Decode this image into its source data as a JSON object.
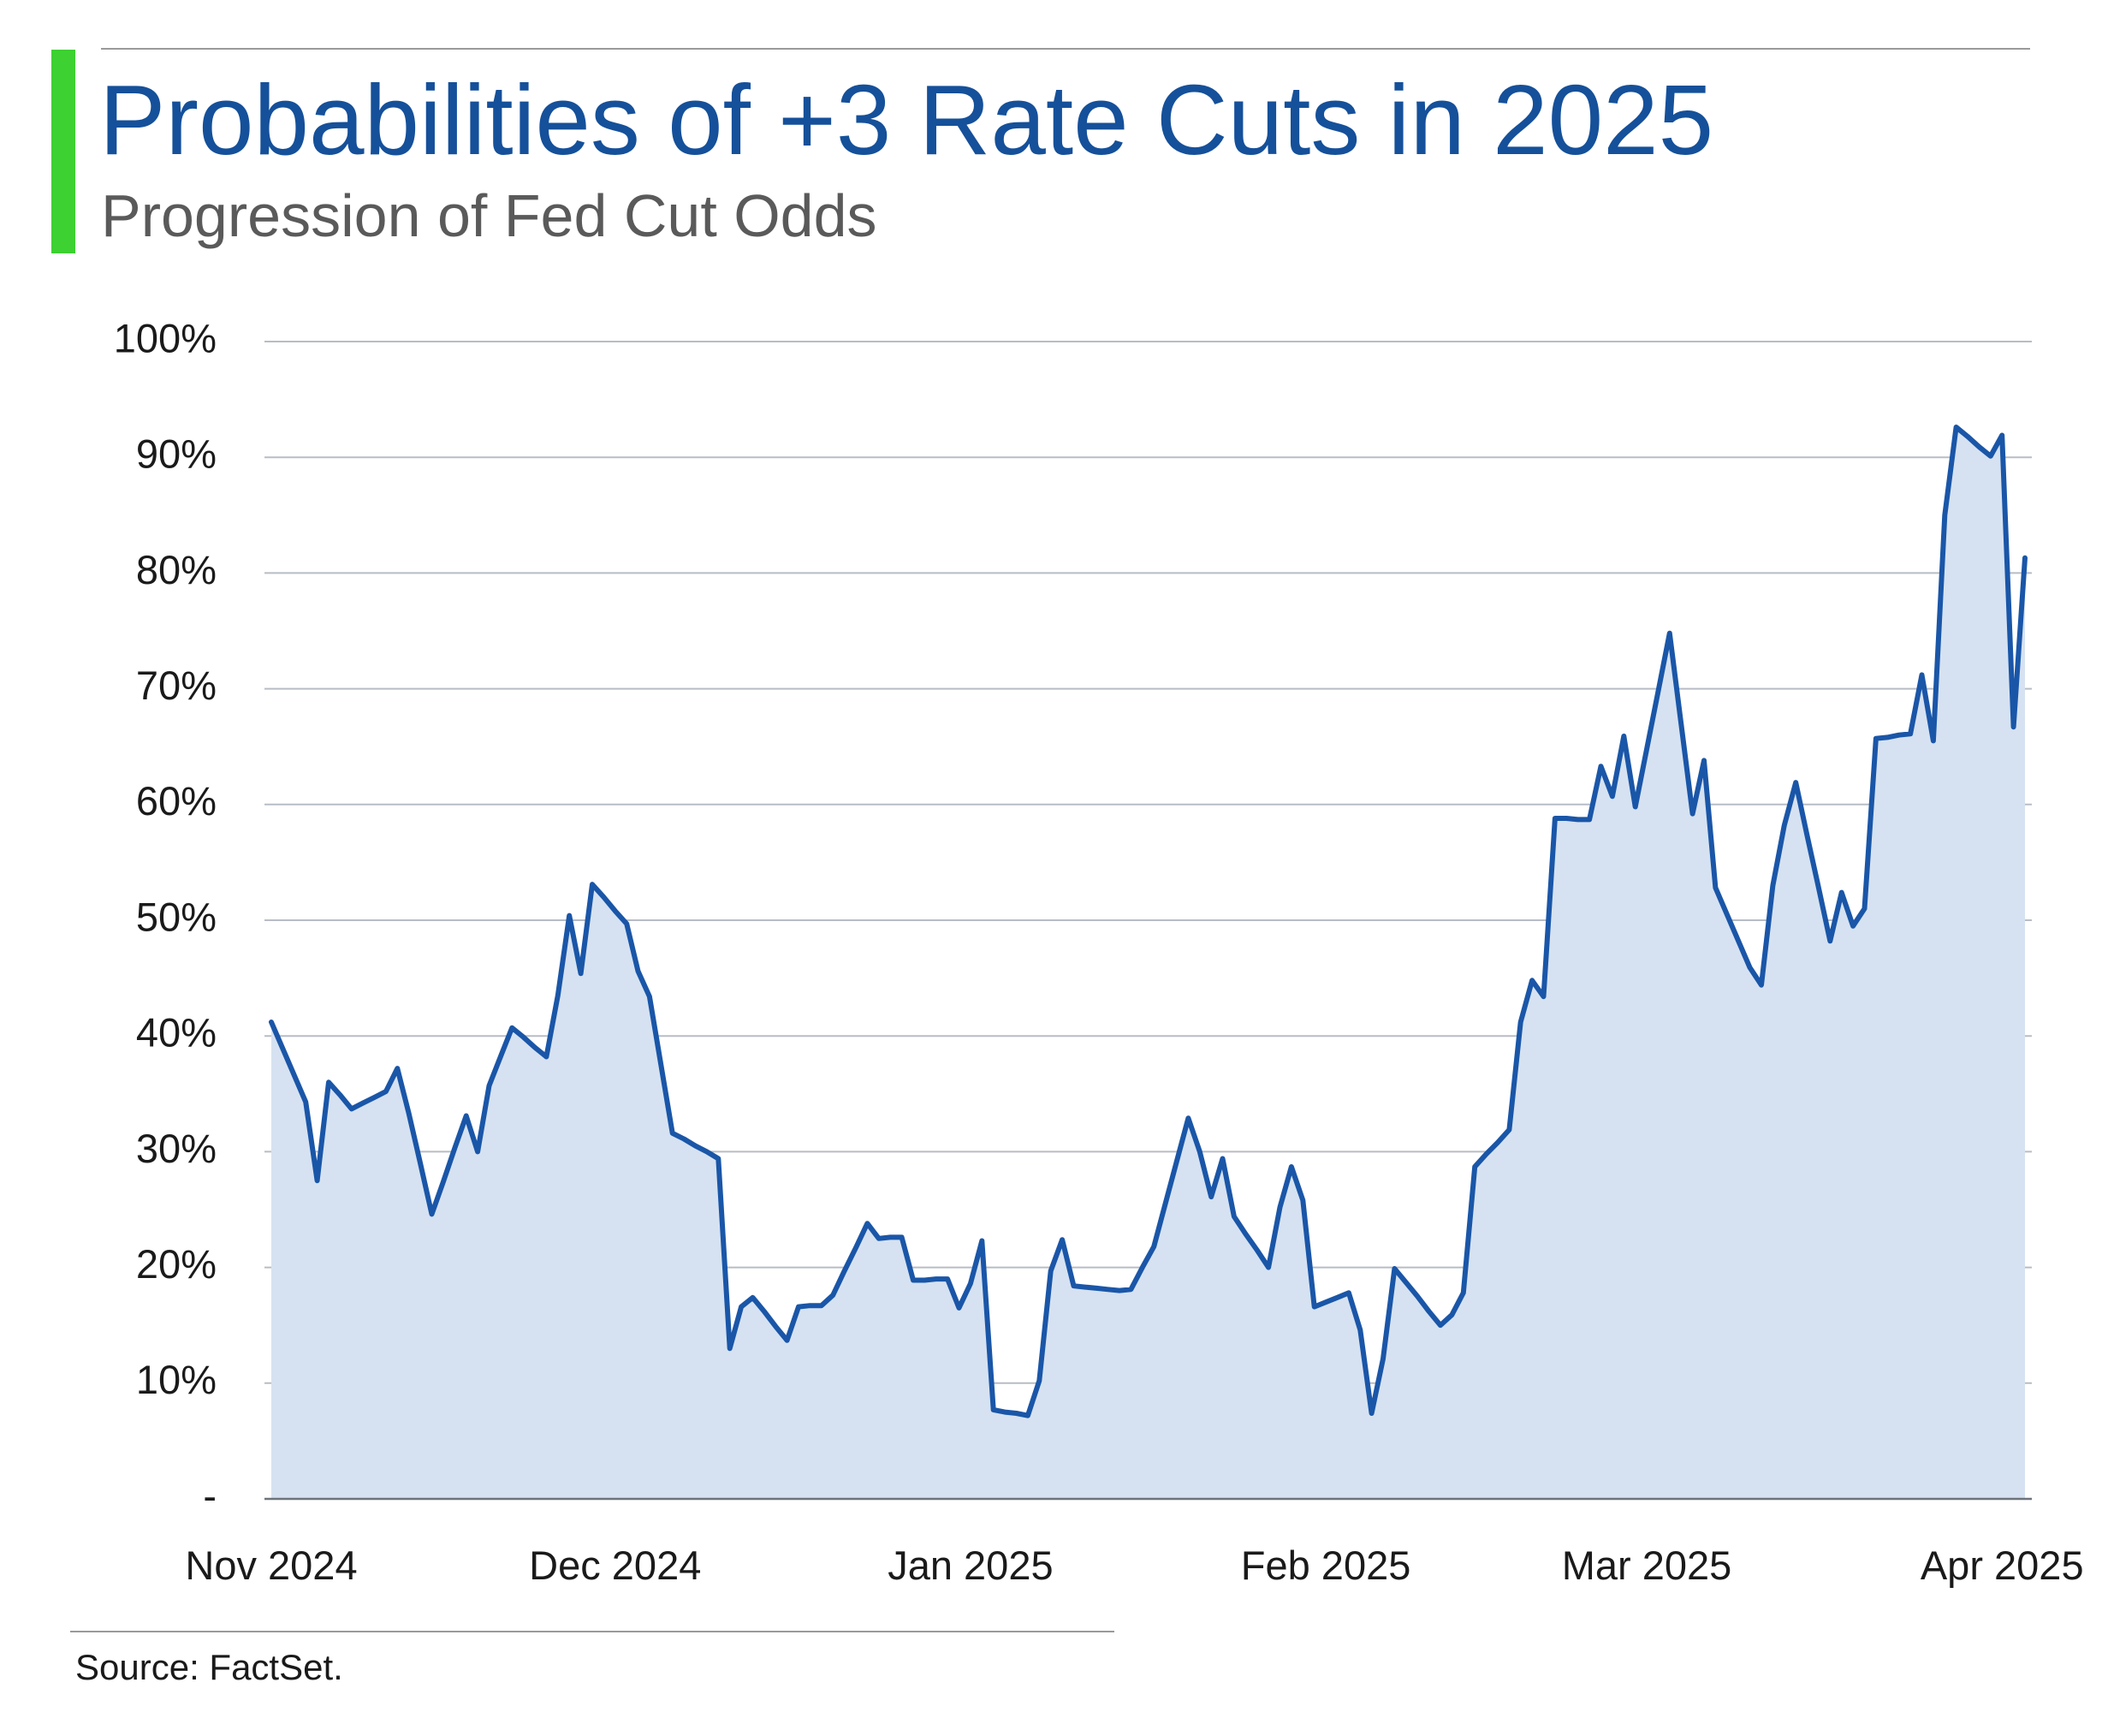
{
  "chart_data": {
    "type": "area",
    "title": "Probabilities of +3 Rate Cuts in 2025",
    "subtitle": "Progression of Fed Cut Odds",
    "source": "Source: FactSet.",
    "categories": [
      "Nov 2024",
      null,
      null,
      null,
      null,
      null,
      null,
      null,
      null,
      null,
      null,
      null,
      null,
      null,
      null,
      null,
      null,
      null,
      null,
      null,
      null,
      null,
      null,
      null,
      null,
      null,
      null,
      null,
      null,
      null,
      "Dec 2024",
      null,
      null,
      null,
      null,
      null,
      null,
      null,
      null,
      null,
      null,
      null,
      null,
      null,
      null,
      null,
      null,
      null,
      null,
      null,
      null,
      null,
      null,
      null,
      null,
      null,
      null,
      null,
      null,
      null,
      null,
      "Jan 2025",
      null,
      null,
      null,
      null,
      null,
      null,
      null,
      null,
      null,
      null,
      null,
      null,
      null,
      null,
      null,
      null,
      null,
      null,
      null,
      null,
      null,
      null,
      null,
      null,
      null,
      null,
      null,
      null,
      null,
      null,
      "Feb 2025",
      null,
      null,
      null,
      null,
      null,
      null,
      null,
      null,
      null,
      null,
      null,
      null,
      null,
      null,
      null,
      null,
      null,
      null,
      null,
      null,
      null,
      null,
      null,
      null,
      null,
      null,
      null,
      "Mar 2025",
      null,
      null,
      null,
      null,
      null,
      null,
      null,
      null,
      null,
      null,
      null,
      null,
      null,
      null,
      null,
      null,
      null,
      null,
      null,
      null,
      null,
      null,
      null,
      null,
      null,
      null,
      null,
      null,
      null,
      null,
      "Apr 2025",
      null,
      null
    ],
    "values": [
      41.2,
      38.9,
      36.6,
      34.3,
      27.5,
      36,
      34.9,
      33.7,
      34.2,
      34.7,
      35.2,
      37.2,
      33.3,
      29.0,
      24.6,
      27.4,
      30.3,
      33.1,
      30,
      35.7,
      38.2,
      40.7,
      39.9,
      39.0,
      38.2,
      43.5,
      50.4,
      45.4,
      53.1,
      52.0,
      50.8,
      49.7,
      45.6,
      43.4,
      37.5,
      31.6,
      31.1,
      30.5,
      30.0,
      29.4,
      13,
      16.6,
      17.4,
      16.2,
      14.9,
      13.7,
      16.6,
      16.7,
      16.7,
      17.6,
      19.7,
      21.7,
      23.8,
      22.5,
      22.6,
      22.6,
      18.9,
      18.9,
      19.0,
      19.0,
      16.5,
      18.6,
      22.3,
      7.7,
      7.5,
      7.4,
      7.2,
      10.2,
      19.7,
      22.4,
      18.4,
      18.3,
      18.2,
      18.1,
      18.0,
      18.1,
      20.0,
      21.8,
      25.5,
      29.2,
      32.9,
      30,
      26.1,
      29.4,
      24.4,
      22.9,
      21.5,
      20,
      25.2,
      28.7,
      25.8,
      16.6,
      17.0,
      17.4,
      17.8,
      14.6,
      7.4,
      12.1,
      19.9,
      18.7,
      17.5,
      16.2,
      15.0,
      15.9,
      17.8,
      28.7,
      29.8,
      30.8,
      31.9,
      41.2,
      44.8,
      43.4,
      58.8,
      58.8,
      58.7,
      58.7,
      63.3,
      60.7,
      65.9,
      59.8,
      64.8,
      69.8,
      74.8,
      67.0,
      59.2,
      63.8,
      52.8,
      50.5,
      48.2,
      45.9,
      44.4,
      53,
      58.2,
      61.9,
      57.3,
      52.8,
      48.2,
      52.4,
      49.5,
      51,
      65.7,
      65.8,
      66.0,
      66.1,
      71.2,
      65.5,
      85,
      92.6,
      91.8,
      90.9,
      90.1,
      91.9,
      66.7,
      81.3
    ],
    "color": "#1a56a8",
    "area_color": "#d6e2f1",
    "ylim": [
      0,
      100
    ],
    "yticks": [
      {
        "value": 0,
        "label": "-"
      },
      {
        "value": 10,
        "label": "10%"
      },
      {
        "value": 20,
        "label": "20%"
      },
      {
        "value": 30,
        "label": "30%"
      },
      {
        "value": 40,
        "label": "40%"
      },
      {
        "value": 50,
        "label": "50%"
      },
      {
        "value": 60,
        "label": "60%"
      },
      {
        "value": 70,
        "label": "70%"
      },
      {
        "value": 80,
        "label": "80%"
      },
      {
        "value": 90,
        "label": "90%"
      },
      {
        "value": 100,
        "label": "100%"
      }
    ],
    "grid": true
  }
}
